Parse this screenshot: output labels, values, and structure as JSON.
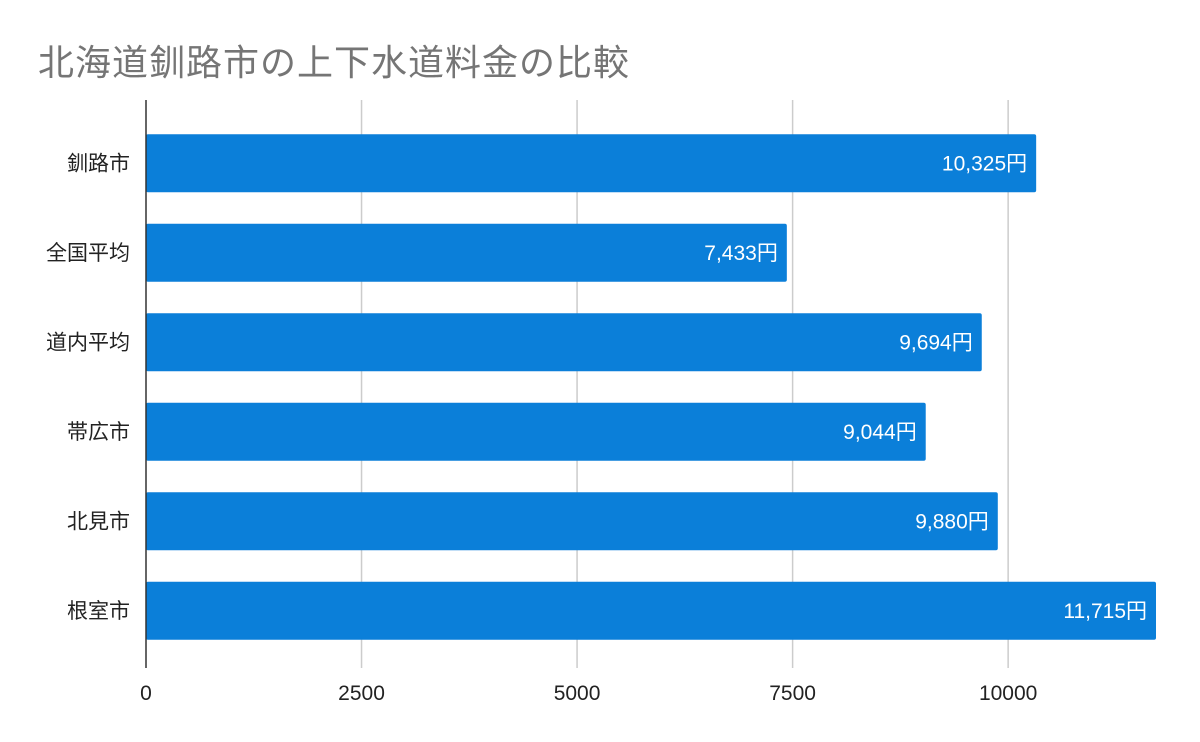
{
  "chart_data": {
    "type": "bar",
    "orientation": "horizontal",
    "title": "北海道釧路市の上下水道料金の比較",
    "categories": [
      "釧路市",
      "全国平均",
      "道内平均",
      "帯広市",
      "北見市",
      "根室市"
    ],
    "values": [
      10325,
      7433,
      9694,
      9044,
      9880,
      11715
    ],
    "data_labels": [
      "10,325円",
      "7,433円",
      "9,694円",
      "9,044円",
      "9,880円",
      "11,715円"
    ],
    "x_ticks": [
      0,
      2500,
      5000,
      7500,
      10000
    ],
    "x_tick_labels": [
      "0",
      "2500",
      "5000",
      "7500",
      "10000"
    ],
    "xlim": [
      0,
      11715
    ],
    "grid": true,
    "legend": "none",
    "colors": {
      "bar": "#0b7fd9",
      "grid": "#cccccc",
      "axis": "#333333",
      "title": "#757575"
    }
  }
}
